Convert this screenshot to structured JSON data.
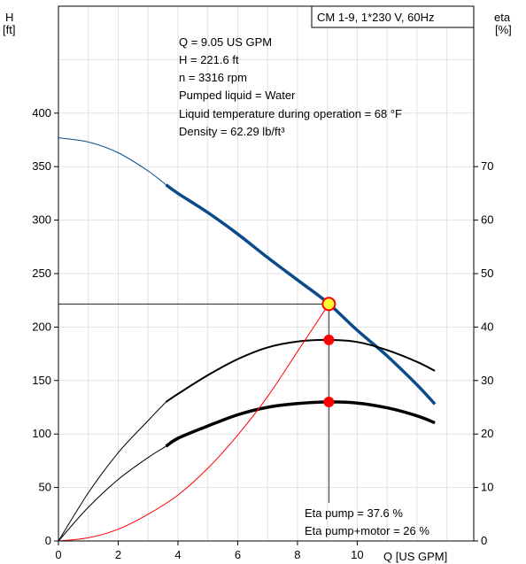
{
  "chart_data": {
    "type": "line",
    "title_box": "CM 1-9, 1*230 V, 60Hz",
    "left_axis": {
      "label_line1": "H",
      "label_line2": "[ft]",
      "range": [
        0,
        500
      ],
      "ticks": [
        0,
        50,
        100,
        150,
        200,
        250,
        300,
        350,
        400
      ]
    },
    "right_axis": {
      "label_line1": "eta",
      "label_line2": "[%]",
      "range": [
        0,
        100
      ],
      "ticks": [
        0,
        10,
        20,
        30,
        40,
        50,
        60,
        70
      ]
    },
    "x_axis": {
      "label": "Q [US GPM]",
      "range": [
        0,
        13.9
      ],
      "ticks": [
        0,
        2,
        4,
        6,
        8,
        10
      ]
    },
    "grid": true,
    "info_lines": [
      "Q = 9.05 US GPM",
      "H = 221.6 ft",
      "n = 3316 rpm",
      "Pumped liquid = Water",
      "Liquid temperature during operation = 68 °F",
      "Density = 62.29 lb/ft³"
    ],
    "eta_lines": [
      "Eta pump = 37.6 %",
      "Eta pump+motor = 26 %"
    ],
    "duty_point": {
      "q": 9.05,
      "h": 221.6,
      "eta_pump": 37.6,
      "eta_pump_motor": 26
    },
    "series": [
      {
        "axis": "left",
        "color": "#0a4b8c",
        "thin_range": [
          0,
          3.6
        ],
        "thick_range": [
          3.6,
          12.6
        ],
        "x": [
          0,
          1,
          2,
          3,
          3.6,
          4,
          5,
          6,
          7,
          8,
          9,
          10,
          11,
          12,
          12.6
        ],
        "y": [
          377,
          373,
          363,
          346,
          333,
          325,
          307,
          287,
          265,
          244,
          223,
          197,
          173,
          146,
          128
        ]
      },
      {
        "axis": "right",
        "color": "#000000",
        "thin_range": [
          0,
          3.6
        ],
        "thick_range": [
          3.6,
          12.6
        ],
        "x": [
          0,
          1,
          2,
          3,
          3.6,
          4,
          5,
          6,
          7,
          8,
          9,
          10,
          11,
          12,
          12.6
        ],
        "y": [
          0,
          9,
          16.5,
          22.5,
          26,
          27.5,
          31,
          34,
          36.2,
          37.3,
          37.6,
          37.2,
          35.7,
          33.5,
          31.8
        ]
      },
      {
        "axis": "right",
        "color": "#000000",
        "thin_range": [
          0,
          3.6
        ],
        "thick_range": [
          3.6,
          12.6
        ],
        "x": [
          0,
          1,
          2,
          3,
          3.6,
          4,
          5,
          6,
          7,
          8,
          9,
          10,
          11,
          12,
          12.6
        ],
        "y": [
          0,
          6.3,
          11.5,
          15.6,
          17.7,
          19.2,
          21.5,
          23.6,
          25,
          25.7,
          26,
          25.8,
          24.9,
          23.4,
          22.1
        ]
      },
      {
        "axis": "left",
        "color": "#ff0000",
        "x": [
          0,
          1,
          2,
          3,
          4,
          5,
          6,
          7,
          8,
          9.05
        ],
        "y": [
          0,
          3,
          11,
          25,
          43,
          68,
          99,
          135,
          177,
          221.6
        ]
      }
    ]
  }
}
